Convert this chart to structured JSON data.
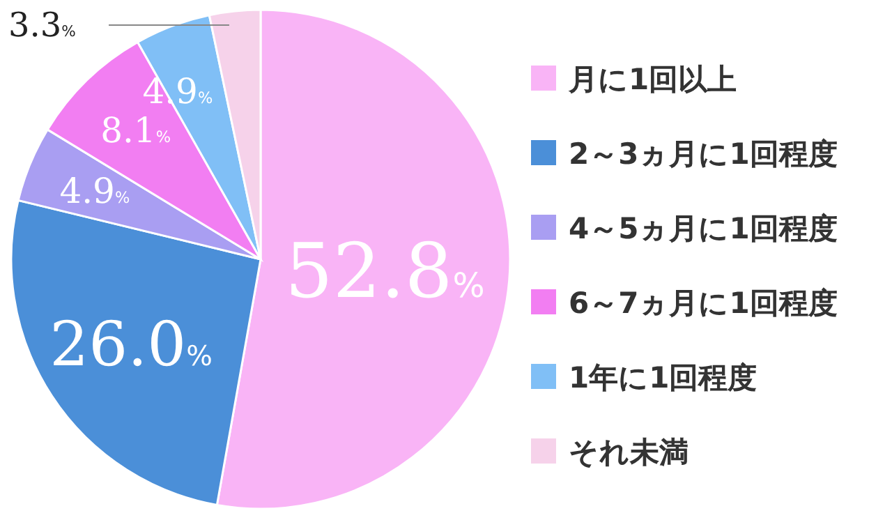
{
  "chart_data": {
    "type": "pie",
    "categories": [
      "月に1回以上",
      "2～3ヵ月に1回程度",
      "4～5ヵ月に1回程度",
      "6～7ヵ月に1回程度",
      "1年に1回程度",
      "それ未満"
    ],
    "values": [
      52.8,
      26.0,
      4.9,
      8.1,
      4.9,
      3.3
    ],
    "colors": [
      "#f9b4f6",
      "#4b8fd8",
      "#a99ef2",
      "#f27ef2",
      "#80bff6",
      "#f6d2ea"
    ],
    "value_labels": [
      "52.8%",
      "26.0%",
      "4.9%",
      "8.1%",
      "4.9%",
      "3.3%"
    ],
    "legend": "right"
  }
}
